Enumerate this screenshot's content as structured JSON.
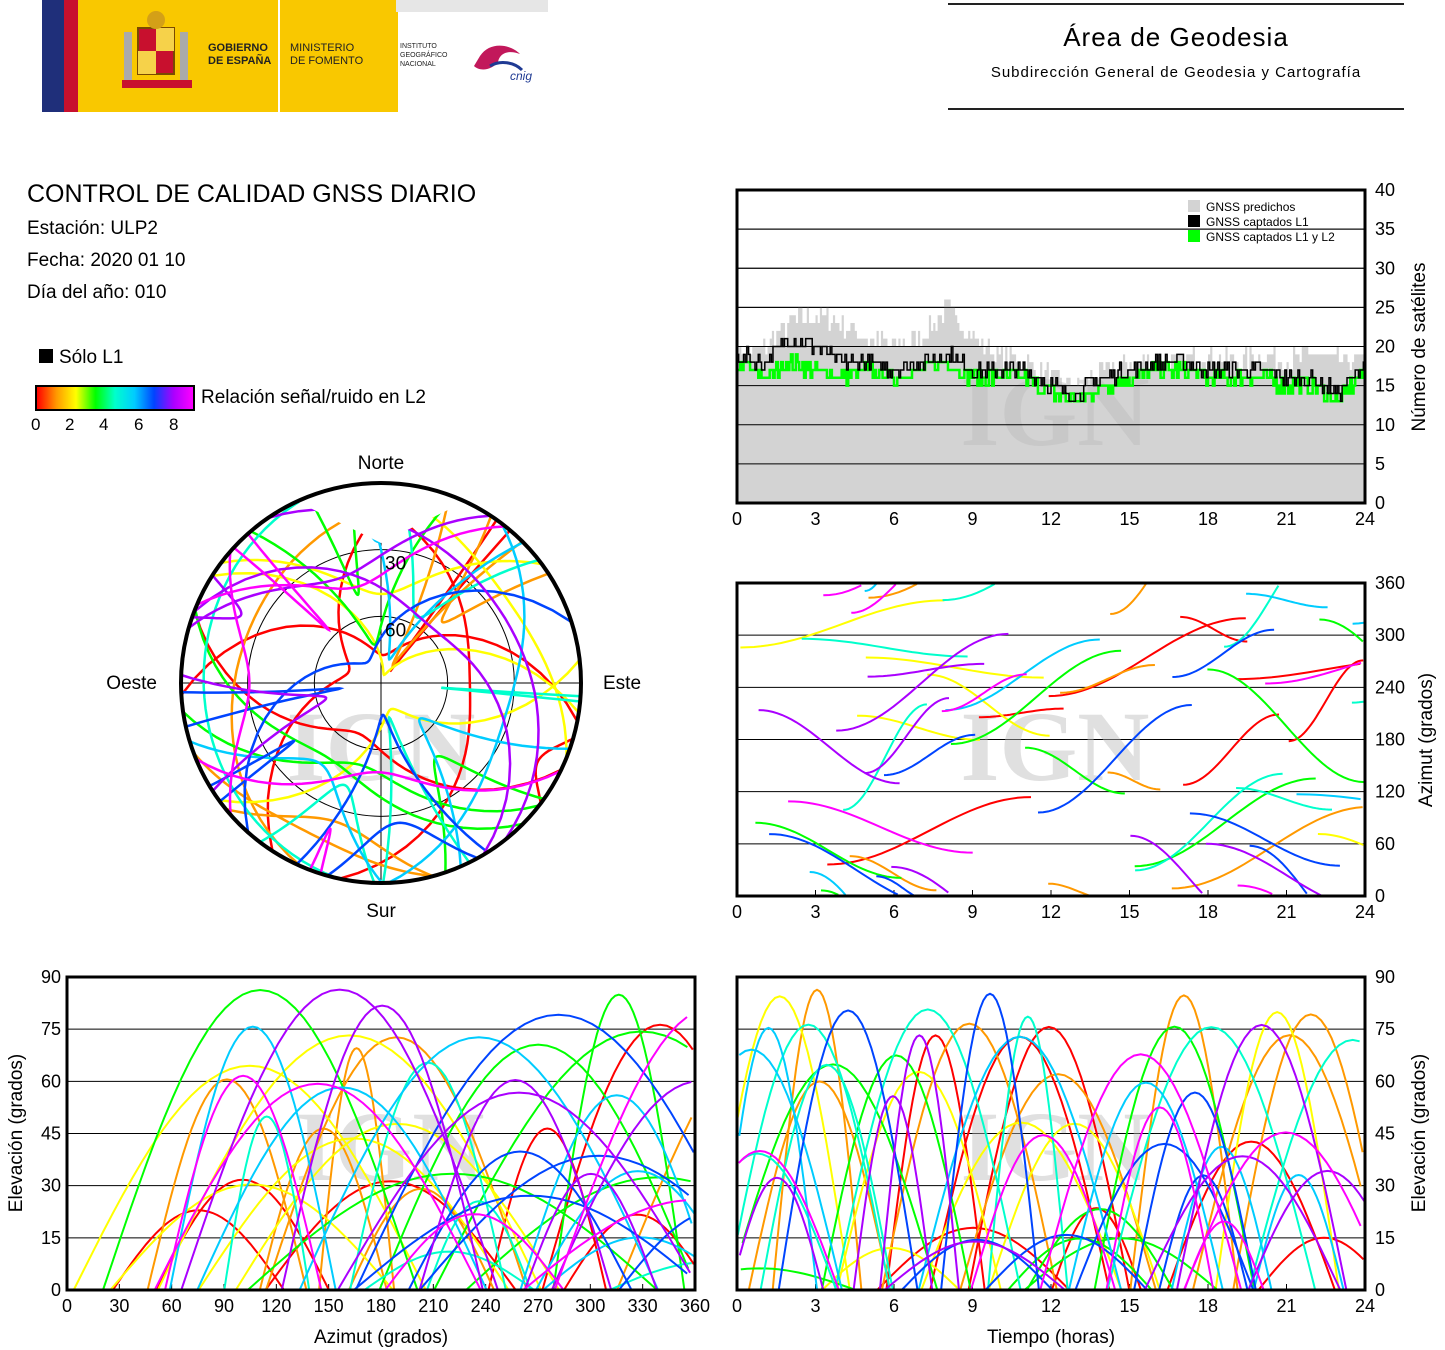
{
  "header": {
    "gov_line1": "GOBIERNO",
    "gov_line2": "DE ESPAÑA",
    "min_line1": "MINISTERIO",
    "min_line2": "DE FOMENTO",
    "ign_line1": "INSTITUTO",
    "ign_line2": "GEOGRÁFICO",
    "ign_line3": "NACIONAL",
    "cnig_logo": "cnig",
    "area_title": "Área de Geodesia",
    "area_subtitle": "Subdirección General de Geodesia y Cartografía"
  },
  "info": {
    "title": "CONTROL DE CALIDAD GNSS DIARIO",
    "station": "Estación: ULP2",
    "date": "Fecha: 2020 01 10",
    "doy": "Día del año: 010"
  },
  "legend": {
    "l1_only": "Sólo L1",
    "snr_label": "Relación señal/ruido en L2",
    "snr_ticks": [
      "0",
      "2",
      "4",
      "6",
      "8"
    ],
    "snr_colors": [
      "#ff0000",
      "#ff9900",
      "#ffff00",
      "#00ff00",
      "#00ffcc",
      "#00ccff",
      "#0044ff",
      "#aa00ff",
      "#ff00ff"
    ]
  },
  "watermark": "IGN",
  "chart_data": [
    {
      "id": "satellite_count",
      "type": "area",
      "ylabel": "Número de satélites",
      "xticks": [
        "0",
        "3",
        "6",
        "9",
        "12",
        "15",
        "18",
        "21",
        "24"
      ],
      "yticks": [
        "0",
        "5",
        "10",
        "15",
        "20",
        "25",
        "30",
        "35",
        "40"
      ],
      "xlim": [
        0,
        24
      ],
      "ylim": [
        0,
        40
      ],
      "grid": true,
      "legend_position": "top-right",
      "x": [
        0,
        1,
        2,
        3,
        4,
        5,
        6,
        7,
        8,
        9,
        10,
        11,
        12,
        13,
        14,
        15,
        16,
        17,
        18,
        19,
        20,
        21,
        22,
        23,
        24
      ],
      "series": [
        {
          "name": "GNSS predichos",
          "color": "#d3d3d3",
          "values": [
            19,
            20,
            23,
            24,
            23,
            21,
            20,
            21,
            25,
            21,
            19,
            18,
            16,
            15,
            17,
            18,
            18,
            18,
            19,
            18,
            19,
            18,
            19,
            18,
            18
          ]
        },
        {
          "name": "GNSS captados L1",
          "color": "#000000",
          "values": [
            19,
            18,
            21,
            20,
            18,
            18,
            17,
            18,
            19,
            17,
            17,
            17,
            15,
            14,
            16,
            17,
            18,
            18,
            17,
            17,
            17,
            16,
            16,
            14,
            18
          ]
        },
        {
          "name": "GNSS captados L1 y L2",
          "color": "#00ff00",
          "values": [
            18,
            16,
            18,
            17,
            16,
            17,
            16,
            17,
            18,
            16,
            16,
            16,
            14,
            13,
            15,
            16,
            17,
            17,
            16,
            16,
            16,
            15,
            15,
            13,
            17
          ]
        }
      ]
    },
    {
      "id": "skyplot",
      "type": "scatter",
      "labels": {
        "north": "Norte",
        "south": "Sur",
        "west": "Oeste",
        "east": "Este"
      },
      "ring_labels": [
        "30",
        "60"
      ]
    },
    {
      "id": "azimuth_vs_time",
      "type": "scatter",
      "ylabel": "Azimut (grados)",
      "xticks": [
        "0",
        "3",
        "6",
        "9",
        "12",
        "15",
        "18",
        "21",
        "24"
      ],
      "yticks": [
        "0",
        "60",
        "120",
        "180",
        "240",
        "300",
        "360"
      ],
      "xlim": [
        0,
        24
      ],
      "ylim": [
        0,
        360
      ],
      "grid": true
    },
    {
      "id": "elevation_vs_azimuth",
      "type": "scatter",
      "xlabel": "Azimut (grados)",
      "ylabel": "Elevación (grados)",
      "xticks": [
        "0",
        "30",
        "60",
        "90",
        "120",
        "150",
        "180",
        "210",
        "240",
        "270",
        "300",
        "330",
        "360"
      ],
      "yticks": [
        "0",
        "15",
        "30",
        "45",
        "60",
        "75",
        "90"
      ],
      "xlim": [
        0,
        360
      ],
      "ylim": [
        0,
        90
      ],
      "grid": true
    },
    {
      "id": "elevation_vs_time",
      "type": "scatter",
      "xlabel": "Tiempo (horas)",
      "ylabel": "Elevación (grados)",
      "xticks": [
        "0",
        "3",
        "6",
        "9",
        "12",
        "15",
        "18",
        "21",
        "24"
      ],
      "yticks": [
        "0",
        "15",
        "30",
        "45",
        "60",
        "75",
        "90"
      ],
      "xlim": [
        0,
        24
      ],
      "ylim": [
        0,
        90
      ],
      "grid": true
    }
  ]
}
